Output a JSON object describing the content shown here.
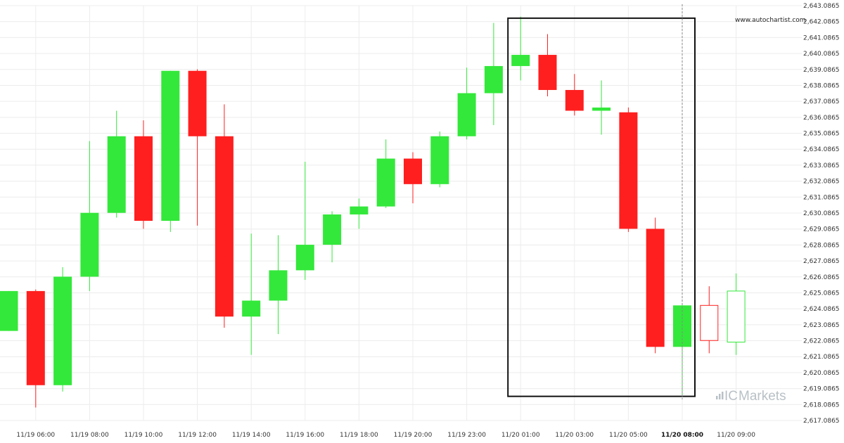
{
  "chart_data": {
    "type": "candlestick",
    "watermark": "www.autochartist.com",
    "brand": {
      "logo_prefix": "IC",
      "name": "Markets"
    },
    "y_ticks": [
      "2,643.0865",
      "2,642.0865",
      "2,641.0865",
      "2,640.0865",
      "2,639.0865",
      "2,638.0865",
      "2,637.0865",
      "2,636.0865",
      "2,635.0865",
      "2,634.0865",
      "2,633.0865",
      "2,632.0865",
      "2,631.0865",
      "2,630.0865",
      "2,629.0865",
      "2,628.0865",
      "2,627.0865",
      "2,626.0865",
      "2,625.0865",
      "2,624.0865",
      "2,623.0865",
      "2,622.0865",
      "2,621.0865",
      "2,620.0865",
      "2,619.0865",
      "2,618.0865",
      "2,617.0865"
    ],
    "ylim": [
      2617.0865,
      2643.0865
    ],
    "x_ticks": [
      {
        "label": "11/19 06:00",
        "index": 1
      },
      {
        "label": "11/19 08:00",
        "index": 3
      },
      {
        "label": "11/19 10:00",
        "index": 5
      },
      {
        "label": "11/19 12:00",
        "index": 7
      },
      {
        "label": "11/19 14:00",
        "index": 9
      },
      {
        "label": "11/19 16:00",
        "index": 11
      },
      {
        "label": "11/19 18:00",
        "index": 13
      },
      {
        "label": "11/19 20:00",
        "index": 15
      },
      {
        "label": "11/19 23:00",
        "index": 17
      },
      {
        "label": "11/20 01:00",
        "index": 19
      },
      {
        "label": "11/20 03:00",
        "index": 21
      },
      {
        "label": "11/20 05:00",
        "index": 23
      },
      {
        "label": "11/20 08:00",
        "index": 25,
        "bold": true
      },
      {
        "label": "11/20 09:00",
        "index": 27
      }
    ],
    "candles": [
      {
        "open": 2622.7,
        "high": 2625.2,
        "low": 2622.7,
        "close": 2625.2
      },
      {
        "open": 2625.2,
        "high": 2625.3,
        "low": 2617.9,
        "close": 2619.3
      },
      {
        "open": 2619.3,
        "high": 2626.7,
        "low": 2618.9,
        "close": 2626.1
      },
      {
        "open": 2626.1,
        "high": 2634.6,
        "low": 2625.2,
        "close": 2630.1
      },
      {
        "open": 2630.1,
        "high": 2636.5,
        "low": 2629.8,
        "close": 2634.9
      },
      {
        "open": 2634.9,
        "high": 2635.9,
        "low": 2629.1,
        "close": 2629.6
      },
      {
        "open": 2629.6,
        "high": 2639.0,
        "low": 2628.9,
        "close": 2639.0
      },
      {
        "open": 2639.0,
        "high": 2639.1,
        "low": 2629.3,
        "close": 2634.9
      },
      {
        "open": 2634.9,
        "high": 2636.9,
        "low": 2622.9,
        "close": 2623.6
      },
      {
        "open": 2623.6,
        "high": 2628.8,
        "low": 2621.2,
        "close": 2624.6
      },
      {
        "open": 2624.6,
        "high": 2628.7,
        "low": 2622.5,
        "close": 2626.5
      },
      {
        "open": 2626.5,
        "high": 2633.3,
        "low": 2625.9,
        "close": 2628.1
      },
      {
        "open": 2628.1,
        "high": 2630.2,
        "low": 2627.0,
        "close": 2630.0
      },
      {
        "open": 2630.0,
        "high": 2631.0,
        "low": 2629.1,
        "close": 2630.5
      },
      {
        "open": 2630.5,
        "high": 2634.7,
        "low": 2630.4,
        "close": 2633.5
      },
      {
        "open": 2633.5,
        "high": 2633.9,
        "low": 2630.7,
        "close": 2631.9
      },
      {
        "open": 2631.9,
        "high": 2635.2,
        "low": 2631.7,
        "close": 2634.9
      },
      {
        "open": 2634.9,
        "high": 2639.2,
        "low": 2634.7,
        "close": 2637.6
      },
      {
        "open": 2637.6,
        "high": 2642.0,
        "low": 2635.6,
        "close": 2639.3
      },
      {
        "open": 2639.3,
        "high": 2642.4,
        "low": 2638.4,
        "close": 2640.0
      },
      {
        "open": 2640.0,
        "high": 2641.3,
        "low": 2637.4,
        "close": 2637.8
      },
      {
        "open": 2637.8,
        "high": 2638.8,
        "low": 2636.2,
        "close": 2636.5
      },
      {
        "open": 2636.5,
        "high": 2638.4,
        "low": 2635.0,
        "close": 2636.7
      },
      {
        "open": 2636.4,
        "high": 2636.7,
        "low": 2628.9,
        "close": 2629.1
      },
      {
        "open": 2629.1,
        "high": 2629.8,
        "low": 2621.3,
        "close": 2621.7
      },
      {
        "open": 2621.7,
        "high": 2624.3,
        "low": 2618.6,
        "close": 2624.3
      },
      {
        "open": 2624.3,
        "high": 2625.5,
        "low": 2621.3,
        "close": 2622.1,
        "projected": true
      },
      {
        "open": 2622.0,
        "high": 2626.3,
        "low": 2621.2,
        "close": 2625.2,
        "projected": true
      }
    ],
    "pattern_box": {
      "start_index": 19,
      "end_index": 25,
      "top": 2642.3,
      "bottom": 2618.6
    },
    "current_time_index": 25,
    "colors": {
      "up": "#33e83a",
      "down": "#ff1f1f",
      "grid": "#ececec",
      "box": "#111111",
      "dashed": "#888888",
      "logo": "#b9c1c6"
    }
  }
}
